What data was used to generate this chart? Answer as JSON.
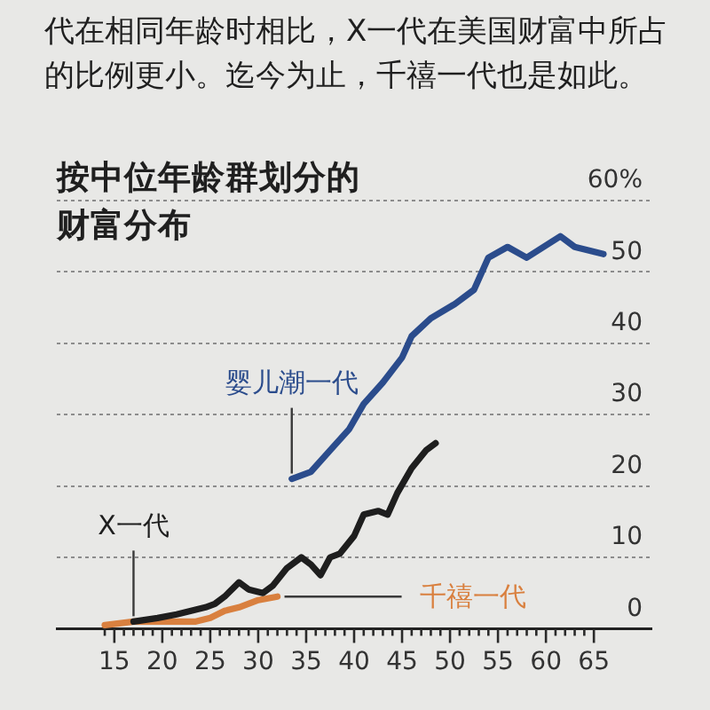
{
  "chart_data": {
    "type": "line",
    "title": "按中位年龄群划分的财富分布",
    "annotations": [
      "代在相同年龄时相比，X一代在美国财富中所占的比例更小。迄今为止，千禧一代也是如此。"
    ],
    "series": [
      {
        "name": "婴儿潮一代",
        "color": "#2b4c8c",
        "x": [
          33.5,
          35.5,
          37.5,
          39.5,
          41,
          43,
          45,
          46,
          48,
          50.5,
          52.5,
          54,
          56,
          58,
          61.5,
          63,
          66
        ],
        "values": [
          21,
          22,
          25,
          28,
          31.5,
          34.5,
          38,
          41,
          43.5,
          45.5,
          47.5,
          52,
          53.5,
          52,
          55,
          53.5,
          52.5
        ]
      },
      {
        "name": "X一代",
        "color": "#1e1e1e",
        "x": [
          17,
          19.5,
          21.5,
          23,
          24.5,
          25.5,
          26.5,
          28,
          29,
          30.5,
          31.5,
          33,
          34.5,
          35.5,
          36.5,
          37.5,
          38.5,
          40,
          41,
          42.5,
          43.5,
          44.5,
          46,
          47.5,
          48.5
        ],
        "values": [
          1,
          1.5,
          2,
          2.5,
          3,
          3.5,
          4.5,
          6.5,
          5.5,
          5,
          6,
          8.5,
          10,
          9,
          7.5,
          10,
          10.5,
          13,
          16,
          16.5,
          16,
          19,
          22.5,
          25,
          26
        ]
      },
      {
        "name": "千禧一代",
        "color": "#d9803f",
        "x": [
          14,
          17,
          20.5,
          23.5,
          25,
          26.5,
          28,
          30,
          32
        ],
        "values": [
          0.5,
          1,
          1,
          1,
          1.5,
          2.5,
          3,
          4,
          4.5
        ]
      }
    ],
    "xlim": [
      9,
      71
    ],
    "xticks": [
      {
        "value": 14,
        "label": null
      },
      15,
      {
        "value": 16,
        "label": null
      },
      {
        "value": 17,
        "label": null
      },
      {
        "value": 18,
        "label": null
      },
      {
        "value": 19,
        "label": null
      },
      20,
      {
        "value": 21,
        "label": null
      },
      {
        "value": 22,
        "label": null
      },
      {
        "value": 23,
        "label": null
      },
      {
        "value": 24,
        "label": null
      },
      25,
      {
        "value": 26,
        "label": null
      },
      {
        "value": 27,
        "label": null
      },
      {
        "value": 28,
        "label": null
      },
      {
        "value": 29,
        "label": null
      },
      30,
      {
        "value": 31,
        "label": null
      },
      {
        "value": 32,
        "label": null
      },
      {
        "value": 33,
        "label": null
      },
      {
        "value": 34,
        "label": null
      },
      35,
      {
        "value": 36,
        "label": null
      },
      {
        "value": 37,
        "label": null
      },
      {
        "value": 38,
        "label": null
      },
      {
        "value": 39,
        "label": null
      },
      40,
      {
        "value": 41,
        "label": null
      },
      {
        "value": 42,
        "label": null
      },
      {
        "value": 43,
        "label": null
      },
      {
        "value": 44,
        "label": null
      },
      45,
      {
        "value": 46,
        "label": null
      },
      {
        "value": 47,
        "label": null
      },
      {
        "value": 48,
        "label": null
      },
      {
        "value": 49,
        "label": null
      },
      50,
      {
        "value": 51,
        "label": null
      },
      {
        "value": 52,
        "label": null
      },
      {
        "value": 53,
        "label": null
      },
      {
        "value": 54,
        "label": null
      },
      55,
      {
        "value": 56,
        "label": null
      },
      {
        "value": 57,
        "label": null
      },
      {
        "value": 58,
        "label": null
      },
      {
        "value": 59,
        "label": null
      },
      60,
      {
        "value": 61,
        "label": null
      },
      {
        "value": 62,
        "label": null
      },
      {
        "value": 63,
        "label": null
      },
      {
        "value": 64,
        "label": null
      },
      65
    ],
    "ylim": [
      0,
      60
    ],
    "yticks": [
      0,
      10,
      20,
      30,
      40,
      50,
      {
        "value": 60,
        "label": "60%"
      }
    ],
    "grid": "y",
    "marker": "none",
    "line_style": "solid"
  }
}
